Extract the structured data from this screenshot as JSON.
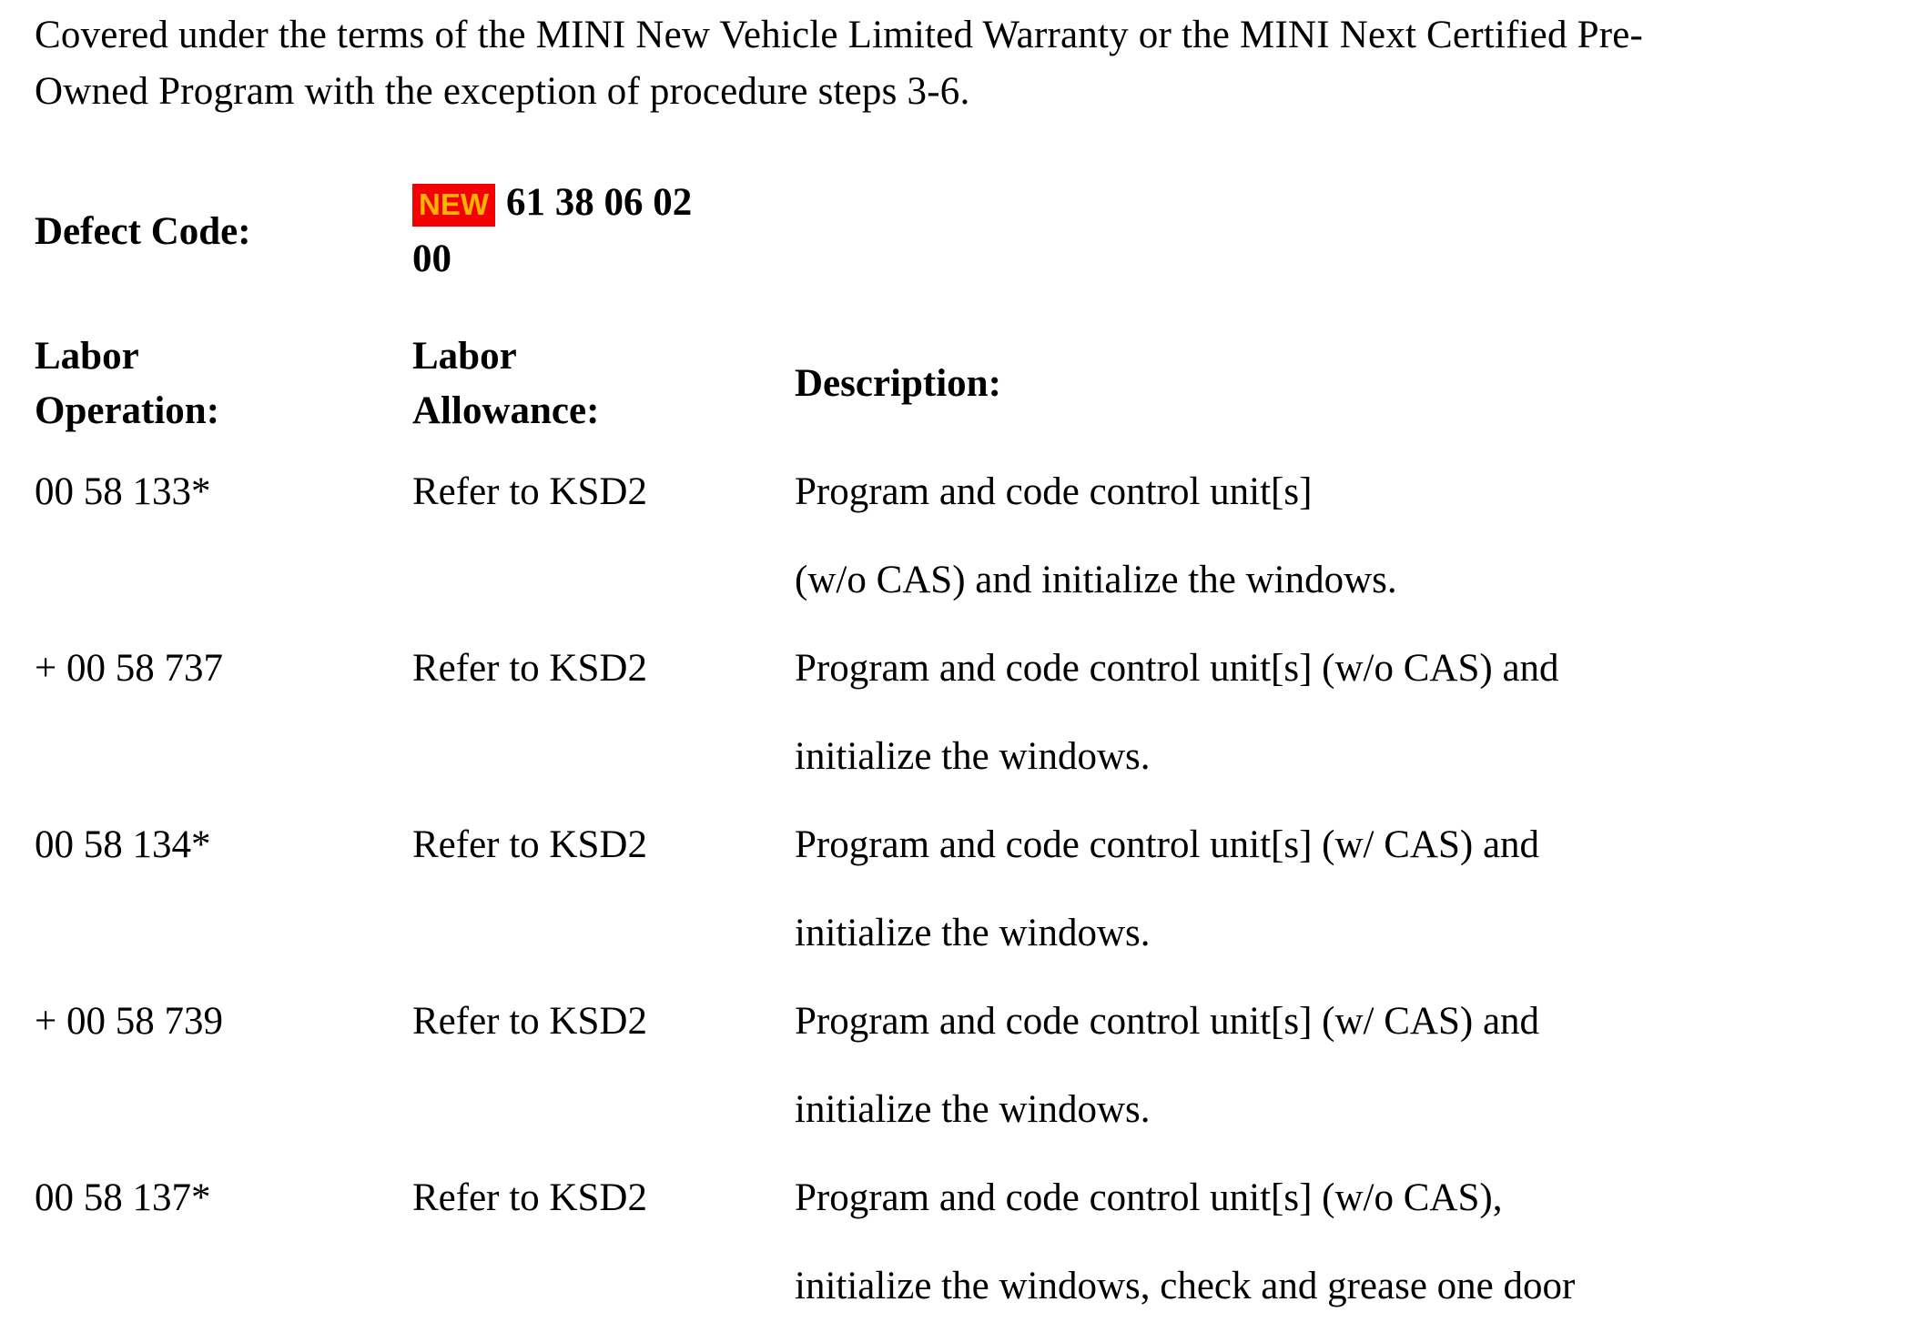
{
  "page": {
    "background_color": "#ffffff",
    "text_color": "#000000"
  },
  "intro": {
    "lines": [
      "Covered under the terms of the MINI New Vehicle Limited Warranty or the MINI Next Certified Pre-",
      "Owned Program with the exception of procedure steps 3-6."
    ]
  },
  "defect_code": {
    "label": "Defect Code:",
    "badge": {
      "text": "NEW",
      "bg_color": "#f40000",
      "text_color": "#ffb400"
    },
    "value_lines": [
      "61 38 06 02",
      "00"
    ]
  },
  "labor_table": {
    "headers": {
      "operation_lines": [
        "Labor",
        "Operation:"
      ],
      "allowance_lines": [
        "Labor",
        "Allowance:"
      ],
      "description": "Description:"
    },
    "rows": [
      {
        "operation": "00 58 133*",
        "allowance": "Refer to KSD2",
        "description_lines": [
          "Program and code control unit[s]",
          "(w/o CAS) and initialize the windows."
        ]
      },
      {
        "operation": "+ 00 58 737",
        "allowance": "Refer to KSD2",
        "description_lines": [
          "Program and code control unit[s] (w/o CAS) and",
          "initialize the windows."
        ]
      },
      {
        "operation": "00 58 134*",
        "allowance": "Refer to KSD2",
        "description_lines": [
          "Program and code control unit[s] (w/ CAS) and",
          "initialize the windows."
        ]
      },
      {
        "operation": "+ 00 58 739",
        "allowance": "Refer to KSD2",
        "description_lines": [
          "Program and code control unit[s] (w/ CAS) and",
          "initialize the windows."
        ]
      },
      {
        "operation": "00 58 137*",
        "allowance": "Refer to KSD2",
        "description_lines": [
          "Program and code control unit[s] (w/o CAS),",
          "initialize the windows, check and grease one door"
        ]
      }
    ]
  }
}
